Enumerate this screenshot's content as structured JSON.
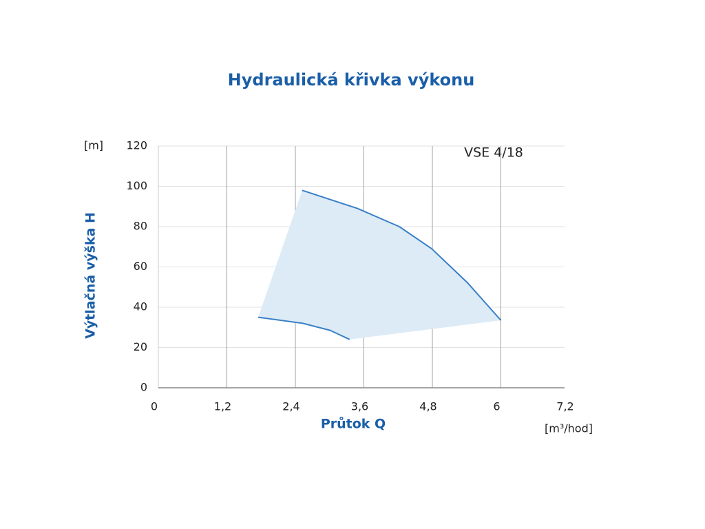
{
  "chart_data": {
    "type": "line",
    "title": "Hydraulická křivka výkonu",
    "x_label": "Průtok Q",
    "y_label": "Výtlačná výška H",
    "x_unit": "[m³/hod]",
    "y_unit": "[m]",
    "annotation": "VSE 4/18",
    "series": [
      {
        "color": "#3a80c6",
        "x": [
          2.52,
          3.49,
          4.22,
          4.79,
          5.42,
          6.0
        ],
        "values": [
          98,
          89,
          80,
          69,
          52,
          33.5
        ]
      },
      {
        "color": "#3a80c6",
        "x": [
          1.75,
          2.53,
          3.01,
          3.35
        ],
        "values": [
          35,
          32,
          28.5,
          24
        ]
      }
    ],
    "area_color": "#dcebf6",
    "xlim": [
      0,
      7.2
    ],
    "xticks": [
      0,
      {
        "value": 1.2,
        "label": "1,2"
      },
      {
        "value": 2.4,
        "label": "2,4"
      },
      {
        "value": 3.6,
        "label": "3,6"
      },
      {
        "value": 4.8,
        "label": "4,8"
      },
      6,
      {
        "value": 7.2,
        "label": "7,2"
      }
    ],
    "ylim": [
      0,
      120
    ],
    "yticks": [
      0,
      20,
      40,
      60,
      80,
      100,
      120
    ],
    "grid": true
  }
}
